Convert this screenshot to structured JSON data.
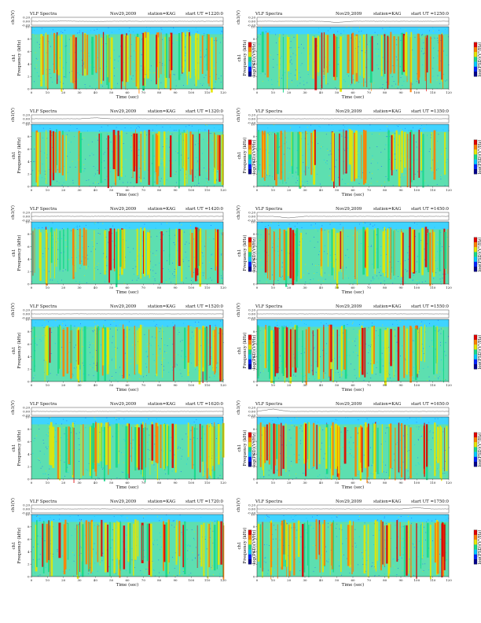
{
  "common": {
    "app_title": "VLF Spectra",
    "date": "Nov29,2009",
    "station": "station=KAG",
    "start_prefix": "start  UT =",
    "ch_label": "ch1(V)",
    "ch_ticks": [
      "0.20",
      "0.00",
      "-0.20"
    ],
    "ch_ylim": [
      -0.2,
      0.2
    ],
    "ylabel": "Frequency (kHz)",
    "ylabel_left": "ch1",
    "xlabel": "Time (sec)",
    "x_ticks": [
      0,
      10,
      20,
      30,
      40,
      50,
      60,
      70,
      80,
      90,
      100,
      110,
      120
    ],
    "xlim": [
      0,
      120
    ],
    "y_ticks": [
      0,
      2,
      4,
      6,
      8,
      10
    ],
    "ylim": [
      0,
      10
    ],
    "colorbar_label": "log(PSD)(V²/Hz)",
    "colorbar_colors": [
      "#00008c",
      "#0022ff",
      "#00c8ff",
      "#16d98a",
      "#e6e600",
      "#ff8000",
      "#e00000"
    ]
  },
  "chart_data": [
    {
      "type": "heatmap",
      "start_time": "1220:0",
      "active_fraction": 0.55,
      "ch1_trace": [
        0.0,
        0.0,
        0.01,
        0.0,
        -0.01,
        0.0,
        0.0,
        0.0,
        0.0,
        0.0,
        0.0,
        0.0,
        0.0
      ]
    },
    {
      "type": "heatmap",
      "start_time": "1250:0",
      "active_fraction": 0.4,
      "ch1_trace": [
        0.0,
        0.0,
        0.0,
        0.0,
        0.0,
        -0.06,
        0.0,
        0.0,
        0.0,
        0.0,
        0.0,
        0.0,
        0.0
      ]
    },
    {
      "type": "heatmap",
      "start_time": "1320:0",
      "active_fraction": 0.35,
      "ch1_trace": [
        0.0,
        0.0,
        0.0,
        0.0,
        0.05,
        0.0,
        0.0,
        0.0,
        0.0,
        0.0,
        0.0,
        0.0,
        0.0
      ]
    },
    {
      "type": "heatmap",
      "start_time": "1350:0",
      "active_fraction": 0.3,
      "ch1_trace": [
        0.0,
        0.0,
        0.0,
        0.0,
        0.0,
        0.0,
        0.0,
        0.0,
        0.0,
        0.0,
        0.0,
        0.0,
        0.0
      ]
    },
    {
      "type": "heatmap",
      "start_time": "1420:0",
      "active_fraction": 0.35,
      "ch1_trace": [
        0.0,
        0.0,
        0.0,
        0.0,
        0.0,
        0.0,
        0.0,
        0.0,
        0.0,
        0.0,
        0.0,
        0.0,
        0.0
      ]
    },
    {
      "type": "heatmap",
      "start_time": "1450:0",
      "active_fraction": 0.4,
      "ch1_trace": [
        0.0,
        0.0,
        -0.08,
        0.0,
        0.0,
        0.0,
        0.0,
        0.0,
        0.0,
        0.0,
        0.0,
        0.0,
        0.0
      ]
    },
    {
      "type": "heatmap",
      "start_time": "1520:0",
      "active_fraction": 0.35,
      "ch1_trace": [
        0.0,
        0.0,
        0.0,
        0.0,
        0.0,
        0.0,
        0.0,
        0.0,
        0.0,
        0.0,
        0.0,
        0.0,
        0.0
      ]
    },
    {
      "type": "heatmap",
      "start_time": "1550:0",
      "active_fraction": 0.45,
      "ch1_trace": [
        0.0,
        0.0,
        0.0,
        0.0,
        0.0,
        0.0,
        0.0,
        0.0,
        0.0,
        0.0,
        0.0,
        0.0,
        0.0
      ]
    },
    {
      "type": "heatmap",
      "start_time": "1620:0",
      "active_fraction": 0.6,
      "ch1_trace": [
        0.0,
        0.0,
        0.0,
        0.0,
        0.0,
        0.0,
        0.0,
        0.0,
        0.0,
        0.0,
        0.0,
        0.0,
        0.0
      ]
    },
    {
      "type": "heatmap",
      "start_time": "1650:0",
      "active_fraction": 0.5,
      "ch1_trace": [
        0.0,
        0.12,
        0.0,
        0.0,
        0.0,
        0.0,
        0.0,
        0.0,
        0.0,
        0.0,
        0.0,
        0.0,
        0.0
      ]
    },
    {
      "type": "heatmap",
      "start_time": "1720:0",
      "active_fraction": 0.55,
      "ch1_trace": [
        0.0,
        0.0,
        0.0,
        0.0,
        0.0,
        0.0,
        0.0,
        0.0,
        0.0,
        0.0,
        0.0,
        0.0,
        0.0
      ]
    },
    {
      "type": "heatmap",
      "start_time": "1750:0",
      "active_fraction": 0.55,
      "ch1_trace": [
        0.0,
        0.0,
        0.0,
        0.0,
        0.0,
        0.0,
        0.0,
        0.0,
        0.0,
        0.0,
        0.06,
        0.0,
        0.0
      ]
    }
  ]
}
